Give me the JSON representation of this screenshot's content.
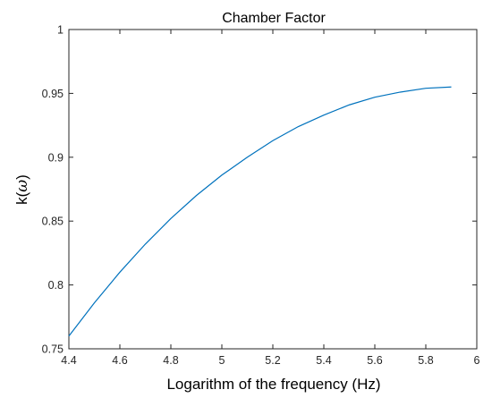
{
  "chart_data": {
    "type": "line",
    "title": "Chamber Factor",
    "xlabel": "Logarithm of the frequency (Hz)",
    "ylabel_main": "k(",
    "ylabel_symbol": "ω",
    "ylabel_close": ")",
    "xlim": [
      4.4,
      6
    ],
    "ylim": [
      0.75,
      1
    ],
    "xticks": [
      4.4,
      4.6,
      4.8,
      5,
      5.2,
      5.4,
      5.6,
      5.8,
      6
    ],
    "xtick_labels": [
      "4.4",
      "4.6",
      "4.8",
      "5",
      "5.2",
      "5.4",
      "5.6",
      "5.8",
      "6"
    ],
    "yticks": [
      0.75,
      0.8,
      0.85,
      0.9,
      0.95,
      1
    ],
    "ytick_labels": [
      "0.75",
      "0.8",
      "0.85",
      "0.9",
      "0.95",
      "1"
    ],
    "grid": false,
    "box": true,
    "line_color": "#0072BD",
    "series": [
      {
        "x": [
          4.4,
          4.5,
          4.6,
          4.7,
          4.8,
          4.9,
          5.0,
          5.1,
          5.2,
          5.3,
          5.4,
          5.5,
          5.6,
          5.7,
          5.8,
          5.9
        ],
        "y": [
          0.76,
          0.786,
          0.81,
          0.832,
          0.852,
          0.87,
          0.886,
          0.9,
          0.913,
          0.924,
          0.933,
          0.941,
          0.947,
          0.951,
          0.954,
          0.955
        ]
      }
    ]
  }
}
